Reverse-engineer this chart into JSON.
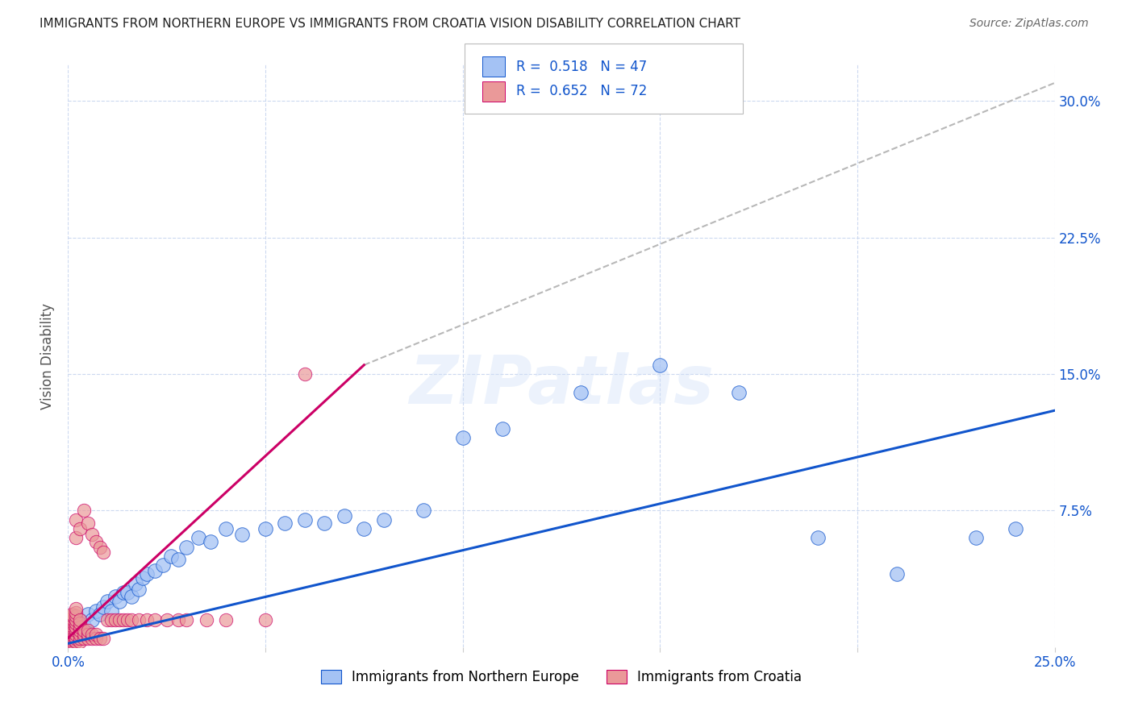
{
  "title": "IMMIGRANTS FROM NORTHERN EUROPE VS IMMIGRANTS FROM CROATIA VISION DISABILITY CORRELATION CHART",
  "source": "Source: ZipAtlas.com",
  "ylabel": "Vision Disability",
  "xlim": [
    0.0,
    0.25
  ],
  "ylim": [
    0.0,
    0.32
  ],
  "x_ticks": [
    0.0,
    0.05,
    0.1,
    0.15,
    0.2,
    0.25
  ],
  "x_tick_labels": [
    "0.0%",
    "",
    "",
    "",
    "",
    "25.0%"
  ],
  "y_ticks": [
    0.075,
    0.15,
    0.225,
    0.3
  ],
  "y_tick_labels": [
    "7.5%",
    "15.0%",
    "22.5%",
    "30.0%"
  ],
  "blue_color": "#a4c2f4",
  "pink_color": "#ea9999",
  "blue_line_color": "#1155cc",
  "pink_line_color": "#cc0066",
  "dashed_line_color": "#b8b8b8",
  "R_blue": 0.518,
  "N_blue": 47,
  "R_pink": 0.652,
  "N_pink": 72,
  "legend_label_blue": "Immigrants from Northern Europe",
  "legend_label_pink": "Immigrants from Croatia",
  "watermark": "ZIPatlas",
  "background_color": "#ffffff",
  "grid_color": "#ccd9f0",
  "blue_scatter_x": [
    0.001,
    0.002,
    0.003,
    0.003,
    0.004,
    0.005,
    0.006,
    0.007,
    0.008,
    0.009,
    0.01,
    0.011,
    0.012,
    0.013,
    0.014,
    0.015,
    0.016,
    0.017,
    0.018,
    0.019,
    0.02,
    0.022,
    0.024,
    0.026,
    0.028,
    0.03,
    0.033,
    0.036,
    0.04,
    0.044,
    0.05,
    0.055,
    0.06,
    0.065,
    0.07,
    0.075,
    0.08,
    0.09,
    0.1,
    0.11,
    0.13,
    0.15,
    0.17,
    0.19,
    0.21,
    0.23,
    0.24
  ],
  "blue_scatter_y": [
    0.005,
    0.008,
    0.01,
    0.015,
    0.012,
    0.018,
    0.015,
    0.02,
    0.018,
    0.022,
    0.025,
    0.02,
    0.028,
    0.025,
    0.03,
    0.03,
    0.028,
    0.035,
    0.032,
    0.038,
    0.04,
    0.042,
    0.045,
    0.05,
    0.048,
    0.055,
    0.06,
    0.058,
    0.065,
    0.062,
    0.065,
    0.068,
    0.07,
    0.068,
    0.072,
    0.065,
    0.07,
    0.075,
    0.115,
    0.12,
    0.14,
    0.155,
    0.14,
    0.06,
    0.04,
    0.06,
    0.065
  ],
  "pink_scatter_x": [
    0.001,
    0.001,
    0.001,
    0.001,
    0.001,
    0.001,
    0.001,
    0.001,
    0.001,
    0.001,
    0.001,
    0.001,
    0.001,
    0.001,
    0.001,
    0.001,
    0.001,
    0.002,
    0.002,
    0.002,
    0.002,
    0.002,
    0.002,
    0.002,
    0.002,
    0.002,
    0.002,
    0.002,
    0.002,
    0.003,
    0.003,
    0.003,
    0.003,
    0.003,
    0.003,
    0.003,
    0.003,
    0.004,
    0.004,
    0.004,
    0.004,
    0.005,
    0.005,
    0.005,
    0.005,
    0.006,
    0.006,
    0.006,
    0.007,
    0.007,
    0.007,
    0.008,
    0.008,
    0.009,
    0.009,
    0.01,
    0.011,
    0.012,
    0.013,
    0.014,
    0.015,
    0.016,
    0.018,
    0.02,
    0.022,
    0.025,
    0.028,
    0.03,
    0.035,
    0.04,
    0.05,
    0.06
  ],
  "pink_scatter_y": [
    0.002,
    0.003,
    0.004,
    0.005,
    0.006,
    0.007,
    0.008,
    0.009,
    0.01,
    0.011,
    0.012,
    0.013,
    0.014,
    0.015,
    0.016,
    0.017,
    0.018,
    0.003,
    0.005,
    0.007,
    0.009,
    0.011,
    0.013,
    0.015,
    0.017,
    0.019,
    0.021,
    0.06,
    0.07,
    0.003,
    0.005,
    0.007,
    0.009,
    0.011,
    0.013,
    0.015,
    0.065,
    0.005,
    0.007,
    0.009,
    0.075,
    0.005,
    0.007,
    0.009,
    0.068,
    0.005,
    0.007,
    0.062,
    0.005,
    0.007,
    0.058,
    0.005,
    0.055,
    0.005,
    0.052,
    0.015,
    0.015,
    0.015,
    0.015,
    0.015,
    0.015,
    0.015,
    0.015,
    0.015,
    0.015,
    0.015,
    0.015,
    0.015,
    0.015,
    0.015,
    0.015,
    0.15
  ],
  "blue_line_x": [
    0.0,
    0.25
  ],
  "blue_line_y": [
    0.002,
    0.13
  ],
  "pink_line_x": [
    0.0,
    0.075
  ],
  "pink_line_y": [
    0.005,
    0.155
  ],
  "dashed_line_x": [
    0.075,
    0.25
  ],
  "dashed_line_y": [
    0.155,
    0.31
  ]
}
